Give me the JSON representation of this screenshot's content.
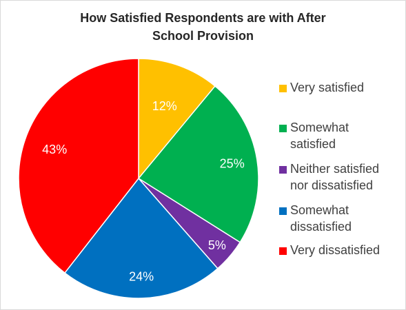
{
  "chart_data": {
    "type": "pie",
    "title_lines": [
      "How Satisfied Respondents are with After",
      "School Provision"
    ],
    "categories": [
      "Very satisfied",
      "Somewhat satisfied",
      "Neither satisfied nor dissatisfied",
      "Somewhat dissatisfied",
      "Very dissatisfied"
    ],
    "values": [
      12,
      25,
      5,
      24,
      43
    ],
    "data_labels": [
      "12%",
      "25%",
      "5%",
      "24%",
      "43%"
    ],
    "colors": [
      "#FFC000",
      "#00B050",
      "#7030A0",
      "#0070C0",
      "#FF0000"
    ],
    "legend_placement": "right",
    "start_angle": "12 o'clock",
    "direction": "clockwise"
  },
  "legend": [
    {
      "lines": [
        "Very satisfied"
      ],
      "color": "#FFC000"
    },
    {
      "lines": [
        "Somewhat",
        "satisfied"
      ],
      "color": "#00B050"
    },
    {
      "lines": [
        "Neither satisfied",
        "nor dissatisfied"
      ],
      "color": "#7030A0"
    },
    {
      "lines": [
        "Somewhat",
        "dissatisfied"
      ],
      "color": "#0070C0"
    },
    {
      "lines": [
        "Very dissatisfied"
      ],
      "color": "#FF0000"
    }
  ]
}
